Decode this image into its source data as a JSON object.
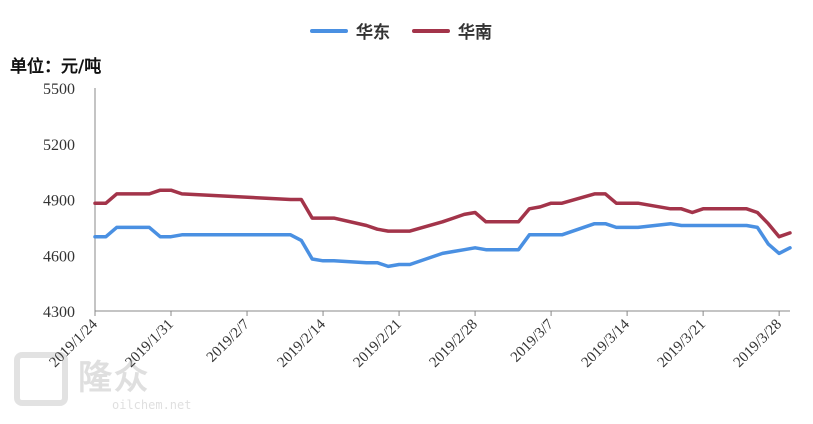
{
  "unit_label": "单位：元/吨",
  "watermark": {
    "text": "隆众",
    "sub": "oilchem.net"
  },
  "colors": {
    "east": "#4A90E2",
    "south": "#A3344A",
    "axis": "#555555"
  },
  "chart_data": {
    "type": "line",
    "title": "",
    "xlabel": "",
    "ylabel": "单位：元/吨",
    "ylim": [
      4300,
      5500
    ],
    "yticks": [
      4300,
      4600,
      4900,
      5200,
      5500
    ],
    "xticks": [
      "2019/1/24",
      "2019/1/31",
      "2019/2/7",
      "2019/2/14",
      "2019/2/21",
      "2019/2/28",
      "2019/3/7",
      "2019/3/14",
      "2019/3/21",
      "2019/3/28"
    ],
    "legend_position": "top",
    "grid": false,
    "x": [
      "2019/1/24",
      "2019/1/25",
      "2019/1/26",
      "2019/1/28",
      "2019/1/29",
      "2019/1/30",
      "2019/1/31",
      "2019/2/1",
      "2019/2/11",
      "2019/2/12",
      "2019/2/13",
      "2019/2/14",
      "2019/2/15",
      "2019/2/18",
      "2019/2/19",
      "2019/2/20",
      "2019/2/21",
      "2019/2/22",
      "2019/2/25",
      "2019/2/26",
      "2019/2/27",
      "2019/2/28",
      "2019/3/1",
      "2019/3/4",
      "2019/3/5",
      "2019/3/6",
      "2019/3/7",
      "2019/3/8",
      "2019/3/11",
      "2019/3/12",
      "2019/3/13",
      "2019/3/14",
      "2019/3/15",
      "2019/3/18",
      "2019/3/19",
      "2019/3/20",
      "2019/3/21",
      "2019/3/22",
      "2019/3/25",
      "2019/3/26",
      "2019/3/27",
      "2019/3/28",
      "2019/3/29"
    ],
    "series": [
      {
        "name": "华东",
        "color": "#4A90E2",
        "values": [
          4700,
          4700,
          4750,
          4750,
          4750,
          4700,
          4700,
          4710,
          4710,
          4680,
          4580,
          4570,
          4570,
          4560,
          4560,
          4540,
          4550,
          4550,
          4610,
          4620,
          4630,
          4640,
          4630,
          4630,
          4710,
          4710,
          4710,
          4710,
          4770,
          4770,
          4750,
          4750,
          4750,
          4770,
          4760,
          4760,
          4760,
          4760,
          4760,
          4750,
          4660,
          4610,
          4640
        ]
      },
      {
        "name": "华南",
        "color": "#A3344A",
        "values": [
          4880,
          4880,
          4930,
          4930,
          4930,
          4950,
          4950,
          4930,
          4900,
          4900,
          4800,
          4800,
          4800,
          4760,
          4740,
          4730,
          4730,
          4730,
          4780,
          4800,
          4820,
          4830,
          4780,
          4780,
          4850,
          4860,
          4880,
          4880,
          4930,
          4930,
          4880,
          4880,
          4880,
          4850,
          4850,
          4830,
          4850,
          4850,
          4850,
          4830,
          4770,
          4700,
          4720
        ]
      }
    ]
  }
}
